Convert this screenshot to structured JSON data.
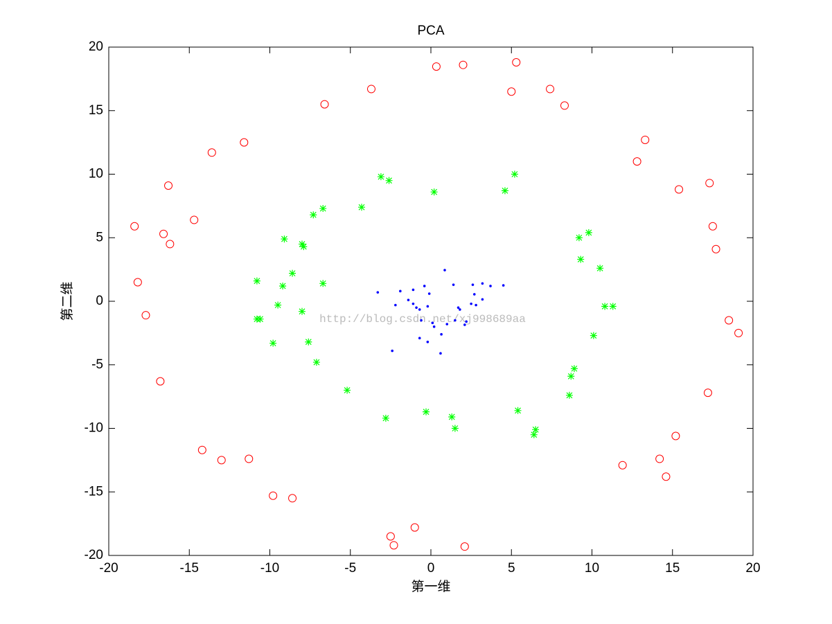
{
  "chart_data": {
    "type": "scatter",
    "title": "PCA",
    "x_label": "第一维",
    "y_label": "第二维",
    "annotation": "http://blog.csdn.net/xj998689aa",
    "xlim": [
      -20,
      20
    ],
    "ylim": [
      -20,
      20
    ],
    "xticks": [
      -20,
      -15,
      -10,
      -5,
      0,
      5,
      10,
      15,
      20
    ],
    "yticks": [
      -20,
      -15,
      -10,
      -5,
      0,
      5,
      10,
      15,
      20
    ],
    "series": [
      {
        "color": "#ff0000",
        "marker": "circle",
        "x": [
          0.34,
          2.0,
          5.3,
          -3.7,
          5.0,
          7.4,
          8.3,
          -6.6,
          -11.6,
          -13.6,
          -16.3,
          -18.4,
          -14.7,
          -16.6,
          -16.2,
          -18.2,
          -17.7,
          -16.8,
          13.3,
          12.8,
          15.4,
          17.3,
          17.5,
          17.7,
          18.5,
          19.1,
          17.2,
          15.2,
          14.2,
          14.6,
          11.9,
          -14.2,
          -13.0,
          -11.3,
          -9.8,
          -8.6,
          -2.5,
          -2.3,
          -1.0,
          2.1
        ],
        "y": [
          18.47,
          18.6,
          18.8,
          16.7,
          16.5,
          16.7,
          15.4,
          15.5,
          12.5,
          11.7,
          9.1,
          5.9,
          6.4,
          5.3,
          4.5,
          1.5,
          -1.1,
          -6.3,
          12.7,
          11.0,
          8.8,
          9.3,
          5.9,
          4.1,
          -1.5,
          -2.5,
          -7.2,
          -10.6,
          -12.4,
          -13.8,
          -12.9,
          -11.7,
          -12.5,
          -12.4,
          -15.3,
          -15.5,
          -18.5,
          -19.2,
          -17.8,
          -19.3
        ]
      },
      {
        "color": "#00ff00",
        "marker": "star",
        "x": [
          -3.1,
          -2.6,
          0.2,
          5.2,
          4.6,
          -4.3,
          -6.7,
          -7.3,
          -9.1,
          -8.0,
          -7.9,
          9.8,
          9.2,
          9.3,
          10.5,
          -8.6,
          -10.8,
          -9.2,
          -6.7,
          -9.5,
          -8.0,
          -10.8,
          -10.6,
          10.8,
          11.3,
          10.1,
          -9.8,
          -7.6,
          -7.1,
          8.9,
          8.7,
          8.6,
          -5.2,
          -2.8,
          -0.3,
          1.3,
          1.5,
          5.4,
          6.5,
          6.4
        ],
        "y": [
          9.8,
          9.5,
          8.6,
          10.0,
          8.7,
          7.4,
          7.3,
          6.8,
          4.9,
          4.5,
          4.3,
          5.4,
          5.0,
          3.3,
          2.6,
          2.2,
          1.6,
          1.2,
          1.4,
          -0.3,
          -0.8,
          -1.4,
          -1.4,
          -0.4,
          -0.4,
          -2.7,
          -3.3,
          -3.2,
          -4.8,
          -5.3,
          -5.9,
          -7.4,
          -7.0,
          -9.2,
          -8.7,
          -9.1,
          -10.0,
          -8.6,
          -10.1,
          -10.5
        ]
      },
      {
        "color": "#0000ff",
        "marker": "dot",
        "x": [
          0.86,
          -3.3,
          -1.9,
          -1.1,
          -0.4,
          1.4,
          2.6,
          3.2,
          3.7,
          4.5,
          -0.1,
          -1.4,
          2.7,
          3.2,
          -2.2,
          -1.1,
          -0.9,
          -0.7,
          -0.2,
          1.7,
          1.8,
          2.5,
          2.8,
          -0.6,
          0.1,
          0.2,
          1.0,
          1.5,
          2.2,
          2.1,
          0.65,
          -0.7,
          -0.2,
          -2.4,
          0.6
        ],
        "y": [
          2.45,
          0.7,
          0.8,
          0.9,
          1.2,
          1.3,
          1.3,
          1.4,
          1.2,
          1.25,
          0.6,
          0.1,
          0.55,
          0.15,
          -0.3,
          -0.2,
          -0.5,
          -0.65,
          -0.4,
          -0.5,
          -0.65,
          -0.2,
          -0.3,
          -1.5,
          -1.7,
          -2.0,
          -1.8,
          -1.5,
          -1.6,
          -1.85,
          -2.6,
          -2.9,
          -3.2,
          -3.9,
          -4.1
        ]
      }
    ]
  }
}
